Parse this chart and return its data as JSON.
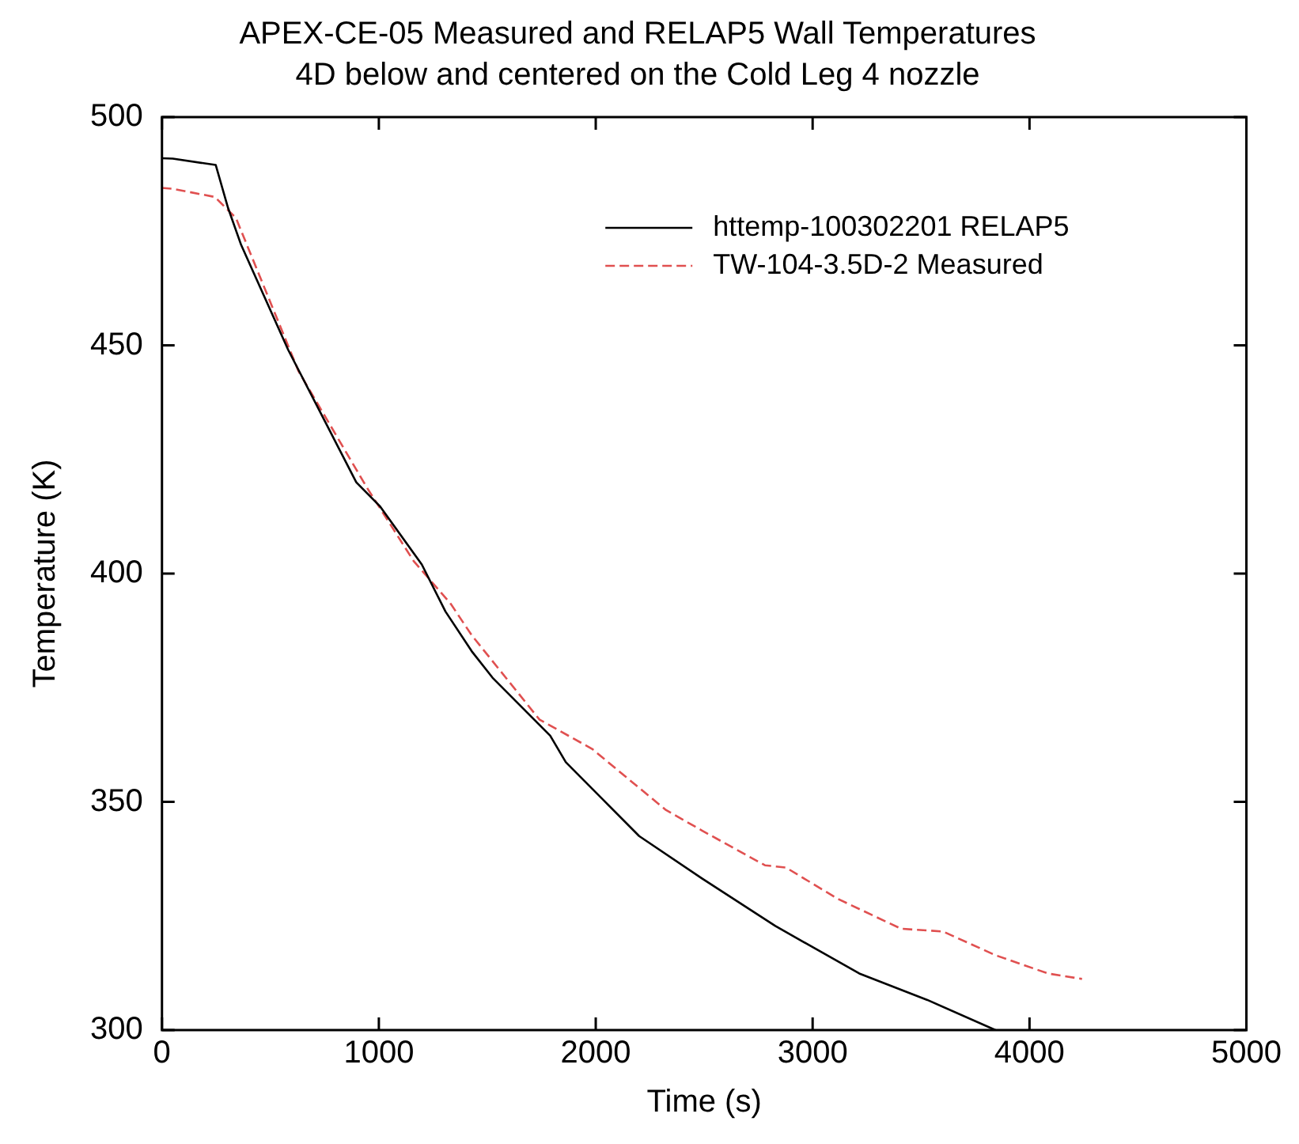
{
  "chart_data": {
    "type": "line",
    "title": "APEX-CE-05 Measured and RELAP5 Wall Temperatures",
    "subtitle": "4D below and centered on the Cold Leg 4 nozzle",
    "xlabel": "Time (s)",
    "ylabel": "Temperature (K)",
    "xlim": [
      0,
      5000
    ],
    "xticks": [
      0,
      1000,
      2000,
      3000,
      4000,
      5000
    ],
    "ylim": [
      300,
      500
    ],
    "yticks": [
      300,
      350,
      400,
      450,
      500
    ],
    "grid": false,
    "legend": "top right",
    "marker": "none",
    "series": [
      {
        "name": "httemp-100302201 RELAP5",
        "color": "#000000",
        "line_style": "solid",
        "x": [
          0,
          50,
          248,
          304,
          365,
          582,
          896,
          1004,
          1198,
          1307,
          1428,
          1524,
          1790,
          1862,
          2200,
          2490,
          2828,
          3215,
          3529,
          3843
        ],
        "values": [
          491,
          490.9,
          489.5,
          480.2,
          472,
          449,
          420,
          414.8,
          402,
          391.7,
          383,
          377.2,
          364.5,
          358.7,
          342.5,
          333.2,
          322.8,
          312.4,
          306.6,
          300
        ]
      },
      {
        "name": "TW-104-3.5D-2 Measured",
        "color": "#e05050",
        "line_style": "dashed",
        "x": [
          0,
          50,
          244,
          341,
          630,
          944,
          1161,
          1331,
          1428,
          1741,
          1983,
          2321,
          2490,
          2780,
          2877,
          3118,
          3408,
          3601,
          3843,
          4085,
          4242
        ],
        "values": [
          484.5,
          484.3,
          482.5,
          477.9,
          444.3,
          418.9,
          402.7,
          393.4,
          386.5,
          368,
          361.6,
          348.3,
          343.7,
          336.1,
          335.6,
          328.7,
          322.2,
          321.6,
          316.4,
          312.4,
          311.2
        ]
      }
    ]
  }
}
